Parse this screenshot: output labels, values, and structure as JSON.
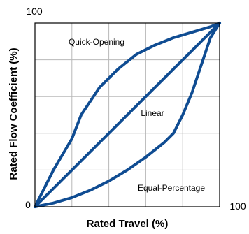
{
  "chart_data": {
    "type": "line",
    "xlabel": "Rated Travel (%)",
    "ylabel": "Rated Flow Coefficient (%)",
    "xlim": [
      0,
      100
    ],
    "ylim": [
      0,
      100
    ],
    "grid": true,
    "tick_labels": {
      "origin": "0",
      "x_max": "100",
      "y_max": "100"
    },
    "line_color": "#0f4c92",
    "series": [
      {
        "name": "Quick-Opening",
        "x": [
          0,
          10,
          20,
          25,
          35,
          45,
          55,
          65,
          75,
          85,
          95,
          100
        ],
        "y": [
          0,
          20,
          37,
          50,
          65,
          75,
          83,
          88,
          92,
          95,
          98,
          100
        ]
      },
      {
        "name": "Linear",
        "x": [
          0,
          100
        ],
        "y": [
          0,
          100
        ]
      },
      {
        "name": "Equal-Percentage",
        "x": [
          0,
          10,
          20,
          30,
          40,
          50,
          60,
          65,
          70,
          75,
          80,
          85,
          90,
          95,
          100
        ],
        "y": [
          0,
          2,
          5,
          9,
          14,
          20,
          27,
          31,
          35,
          40,
          50,
          62,
          77,
          92,
          100
        ]
      }
    ]
  }
}
